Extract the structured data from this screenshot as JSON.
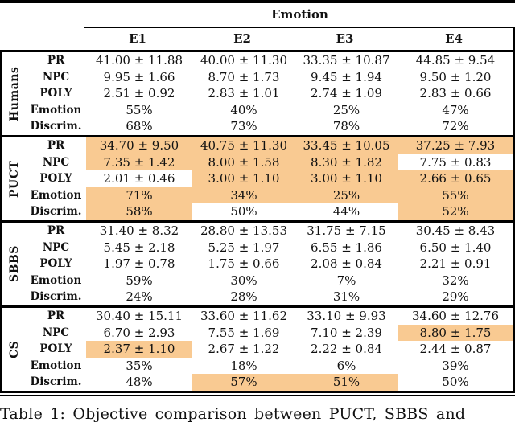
{
  "table": {
    "header": {
      "group_label": "Emotion",
      "columns": [
        "E1",
        "E2",
        "E3",
        "E4"
      ]
    },
    "groups": [
      {
        "name": "Humans",
        "rows": [
          {
            "label": "PR",
            "values": [
              "41.00 ± 11.88",
              "40.00 ± 11.30",
              "33.35 ± 10.87",
              "44.85 ± 9.54"
            ],
            "highlight": [
              false,
              false,
              false,
              false
            ]
          },
          {
            "label": "NPC",
            "values": [
              "9.95 ± 1.66",
              "8.70 ± 1.73",
              "9.45 ± 1.94",
              "9.50 ± 1.20"
            ],
            "highlight": [
              false,
              false,
              false,
              false
            ]
          },
          {
            "label": "POLY",
            "values": [
              "2.51 ± 0.92",
              "2.83 ± 1.01",
              "2.74 ± 1.09",
              "2.83 ± 0.66"
            ],
            "highlight": [
              false,
              false,
              false,
              false
            ]
          },
          {
            "label": "Emotion",
            "values": [
              "55%",
              "40%",
              "25%",
              "47%"
            ],
            "highlight": [
              false,
              false,
              false,
              false
            ]
          },
          {
            "label": "Discrim.",
            "values": [
              "68%",
              "73%",
              "78%",
              "72%"
            ],
            "highlight": [
              false,
              false,
              false,
              false
            ]
          }
        ]
      },
      {
        "name": "PUCT",
        "rows": [
          {
            "label": "PR",
            "values": [
              "34.70 ± 9.50",
              "40.75 ± 11.30",
              "33.45 ± 10.05",
              "37.25 ± 7.93"
            ],
            "highlight": [
              true,
              true,
              true,
              true
            ]
          },
          {
            "label": "NPC",
            "values": [
              "7.35 ± 1.42",
              "8.00 ± 1.58",
              "8.30 ± 1.82",
              "7.75 ± 0.83"
            ],
            "highlight": [
              true,
              true,
              true,
              false
            ]
          },
          {
            "label": "POLY",
            "values": [
              "2.01 ± 0.46",
              "3.00 ± 1.10",
              "3.00 ± 1.10",
              "2.66 ± 0.65"
            ],
            "highlight": [
              false,
              true,
              true,
              true
            ]
          },
          {
            "label": "Emotion",
            "values": [
              "71%",
              "34%",
              "25%",
              "55%"
            ],
            "highlight": [
              true,
              true,
              true,
              true
            ]
          },
          {
            "label": "Discrim.",
            "values": [
              "58%",
              "50%",
              "44%",
              "52%"
            ],
            "highlight": [
              true,
              false,
              false,
              true
            ]
          }
        ]
      },
      {
        "name": "SBBS",
        "rows": [
          {
            "label": "PR",
            "values": [
              "31.40 ± 8.32",
              "28.80 ± 13.53",
              "31.75 ± 7.15",
              "30.45 ± 8.43"
            ],
            "highlight": [
              false,
              false,
              false,
              false
            ]
          },
          {
            "label": "NPC",
            "values": [
              "5.45 ± 2.18",
              "5.25 ± 1.97",
              "6.55 ± 1.86",
              "6.50 ± 1.40"
            ],
            "highlight": [
              false,
              false,
              false,
              false
            ]
          },
          {
            "label": "POLY",
            "values": [
              "1.97 ± 0.78",
              "1.75 ± 0.66",
              "2.08 ± 0.84",
              "2.21 ± 0.91"
            ],
            "highlight": [
              false,
              false,
              false,
              false
            ]
          },
          {
            "label": "Emotion",
            "values": [
              "59%",
              "30%",
              "7%",
              "32%"
            ],
            "highlight": [
              false,
              false,
              false,
              false
            ]
          },
          {
            "label": "Discrim.",
            "values": [
              "24%",
              "28%",
              "31%",
              "29%"
            ],
            "highlight": [
              false,
              false,
              false,
              false
            ]
          }
        ]
      },
      {
        "name": "CS",
        "rows": [
          {
            "label": "PR",
            "values": [
              "30.40 ± 15.11",
              "33.60 ± 11.62",
              "33.10 ± 9.93",
              "34.60 ± 12.76"
            ],
            "highlight": [
              false,
              false,
              false,
              false
            ]
          },
          {
            "label": "NPC",
            "values": [
              "6.70 ± 2.93",
              "7.55 ± 1.69",
              "7.10 ± 2.39",
              "8.80 ± 1.75"
            ],
            "highlight": [
              false,
              false,
              false,
              true
            ]
          },
          {
            "label": "POLY",
            "values": [
              "2.37 ± 1.10",
              "2.67 ± 1.22",
              "2.22 ± 0.84",
              "2.44 ± 0.87"
            ],
            "highlight": [
              true,
              false,
              false,
              false
            ]
          },
          {
            "label": "Emotion",
            "values": [
              "35%",
              "18%",
              "6%",
              "39%"
            ],
            "highlight": [
              false,
              false,
              false,
              false
            ]
          },
          {
            "label": "Discrim.",
            "values": [
              "48%",
              "57%",
              "51%",
              "50%"
            ],
            "highlight": [
              false,
              true,
              true,
              false
            ]
          }
        ]
      }
    ]
  },
  "caption": "Table 1: Objective comparison between PUCT, SBBS and",
  "colors": {
    "highlight": "#F9CA92",
    "rule": "#000000"
  }
}
